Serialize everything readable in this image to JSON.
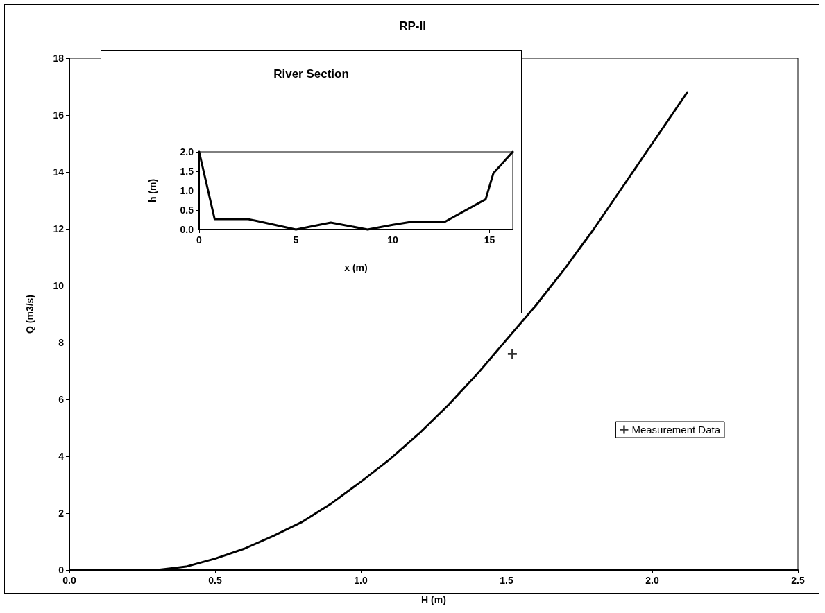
{
  "chart_data": [
    {
      "type": "line",
      "title": "RP-II",
      "xlabel": "H (m)",
      "ylabel": "Q (m3/s)",
      "xlim": [
        0,
        2.5
      ],
      "xticks": [
        {
          "value": 0,
          "label": "0.0"
        },
        0.5,
        {
          "value": 1,
          "label": "1.0"
        },
        1.5,
        {
          "value": 2,
          "label": "2.0"
        },
        2.5
      ],
      "ylim": [
        0,
        18
      ],
      "yticks": [
        0,
        2,
        4,
        6,
        8,
        10,
        12,
        14,
        16,
        18
      ],
      "grid": false,
      "legend": "bottom right",
      "series": [
        {
          "type": "line",
          "color": "#000000",
          "marker": "none",
          "line_style": "solid",
          "x": [
            0.3,
            0.4,
            0.5,
            0.6,
            0.7,
            0.8,
            0.9,
            1.0,
            1.1,
            1.2,
            1.3,
            1.4,
            1.5,
            1.6,
            1.7,
            1.8,
            1.9,
            2.0,
            2.12
          ],
          "values": [
            0,
            0.12,
            0.4,
            0.75,
            1.2,
            1.7,
            2.35,
            3.1,
            3.9,
            4.8,
            5.8,
            6.9,
            8.1,
            9.3,
            10.6,
            12.0,
            13.5,
            15.0,
            16.8
          ]
        },
        {
          "type": "scatter",
          "name": "Measurement Data",
          "color": "#000000",
          "marker": "cross",
          "x": [
            1.52
          ],
          "values": [
            7.6
          ]
        }
      ]
    },
    {
      "type": "line",
      "title": "River Section",
      "xlabel": "x (m)",
      "ylabel": "h (m)",
      "xlim": [
        0,
        16.2
      ],
      "xticks": [
        0,
        5,
        10,
        15
      ],
      "ylim": [
        0,
        2
      ],
      "yticks": [
        {
          "value": 0,
          "label": "0.0"
        },
        0.5,
        {
          "value": 1,
          "label": "1.0"
        },
        1.5,
        {
          "value": 2,
          "label": "2.0"
        }
      ],
      "grid": false,
      "legend": false,
      "series": [
        {
          "type": "line",
          "color": "#000000",
          "marker": "none",
          "line_style": "solid",
          "x": [
            0,
            0.8,
            2.5,
            3,
            5,
            6.8,
            8.7,
            10,
            11,
            12.7,
            14.8,
            15.2,
            16.2
          ],
          "values": [
            2.0,
            0.27,
            0.27,
            0.22,
            0,
            0.18,
            0,
            0.12,
            0.2,
            0.2,
            0.78,
            1.45,
            2.0
          ]
        }
      ]
    }
  ]
}
